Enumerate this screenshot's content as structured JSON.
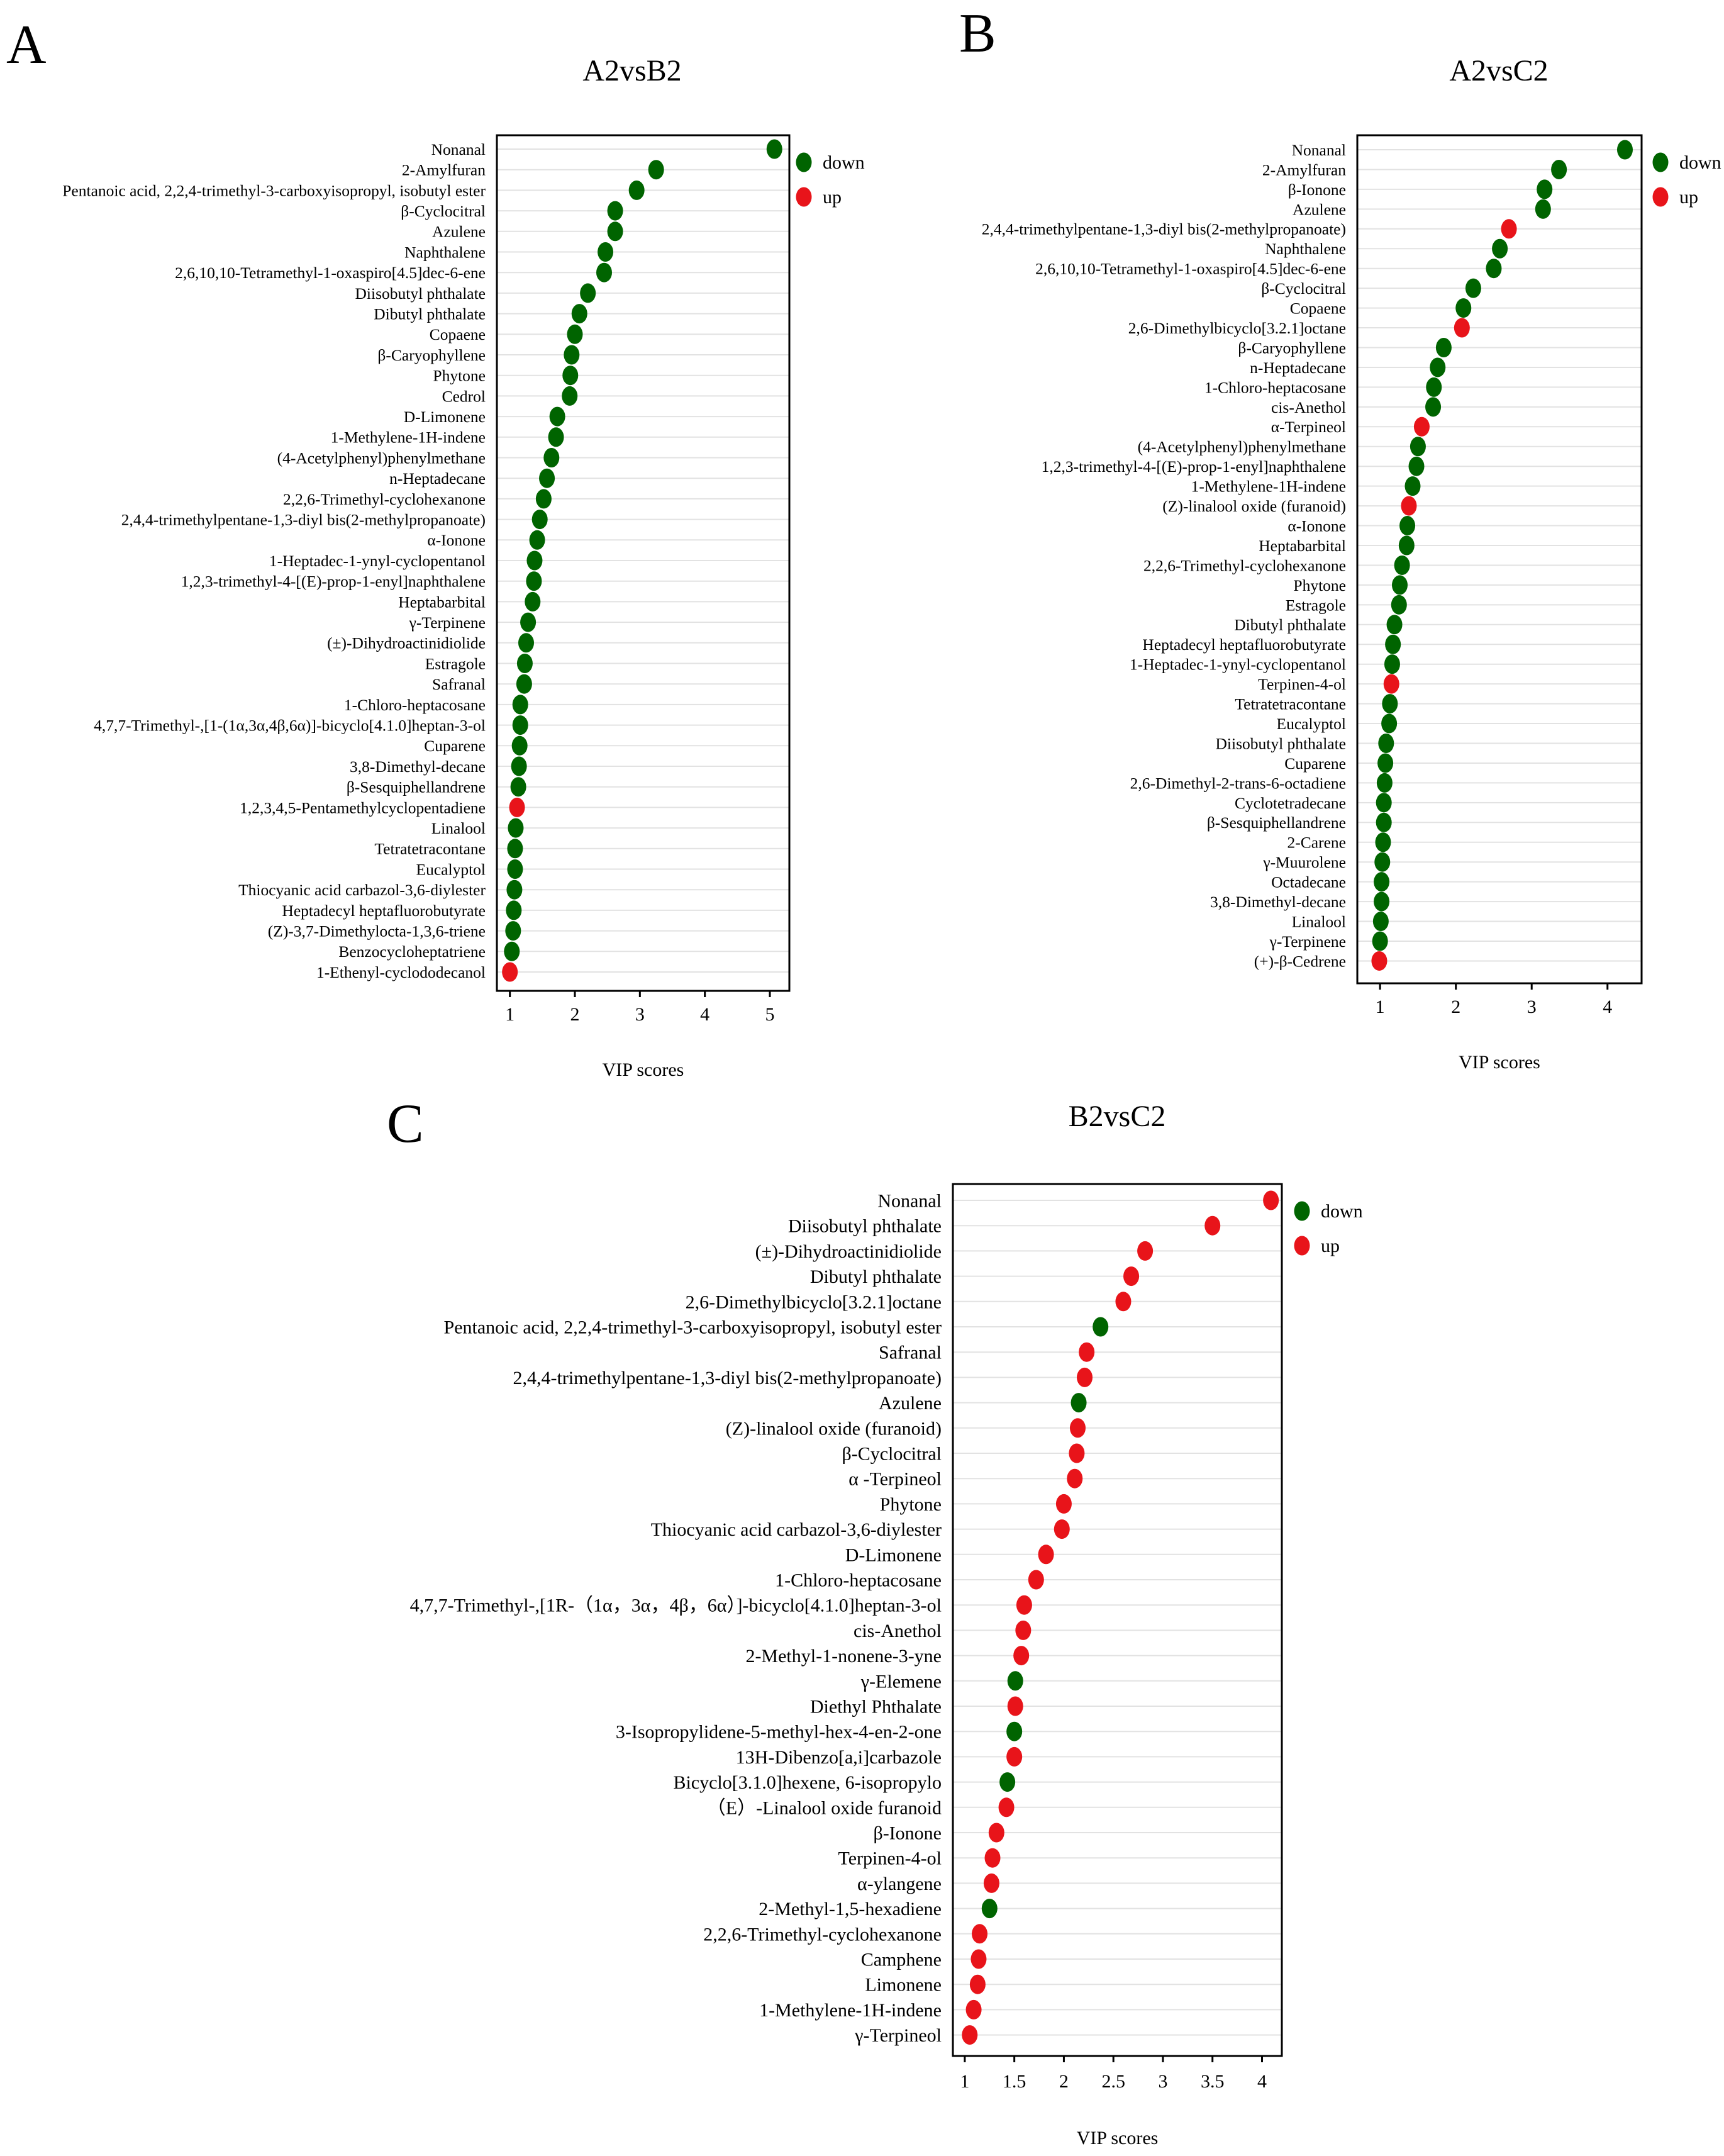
{
  "colors": {
    "down": "#006400",
    "up": "#e8141a"
  },
  "legend": {
    "down": "down",
    "up": "up"
  },
  "chart_data": [
    {
      "panel": "A",
      "type": "scatter",
      "title": "A2vsB2",
      "xlabel": "VIP scores",
      "ylabel": "",
      "xlim": [
        0.8,
        5.3
      ],
      "xticks": [
        1,
        2,
        3,
        4,
        5
      ],
      "categories": [
        "Nonanal",
        "2-Amylfuran",
        "Pentanoic acid, 2,2,4-trimethyl-3-carboxyisopropyl, isobutyl ester",
        "β-Cyclocitral",
        "Azulene",
        "Naphthalene",
        "2,6,10,10-Tetramethyl-1-oxaspiro[4.5]dec-6-ene",
        "Diisobutyl phthalate",
        "Dibutyl phthalate",
        "Copaene",
        "β-Caryophyllene",
        "Phytone",
        "Cedrol",
        "D-Limonene",
        "1-Methylene-1H-indene",
        "(4-Acetylphenyl)phenylmethane",
        "n-Heptadecane",
        "2,2,6-Trimethyl-cyclohexanone",
        "2,4,4-trimethylpentane-1,3-diyl bis(2-methylpropanoate)",
        "α-Ionone",
        "1-Heptadec-1-ynyl-cyclopentanol",
        "1,2,3-trimethyl-4-[(E)-prop-1-enyl]naphthalene",
        "Heptabarbital",
        "γ-Terpinene",
        "(±)-Dihydroactinidiolide",
        "Estragole",
        "Safranal",
        "1-Chloro-heptacosane",
        "4,7,7-Trimethyl-,[1-(1α,3α,4β,6α)]-bicyclo[4.1.0]heptan-3-ol",
        "Cuparene",
        "3,8-Dimethyl-decane",
        "β-Sesquiphellandrene",
        "1,2,3,4,5-Pentamethylcyclopentadiene",
        "Linalool",
        "Tetratetracontane",
        "Eucalyptol",
        "Thiocyanic acid carbazol-3,6-diylester",
        "Heptadecyl heptafluorobutyrate",
        "(Z)-3,7-Dimethylocta-1,3,6-triene",
        "Benzocycloheptatriene",
        "1-Ethenyl-cyclododecanol"
      ],
      "values": [
        5.07,
        3.25,
        2.95,
        2.62,
        2.62,
        2.47,
        2.45,
        2.2,
        2.07,
        2.0,
        1.95,
        1.93,
        1.92,
        1.73,
        1.71,
        1.64,
        1.57,
        1.52,
        1.46,
        1.42,
        1.38,
        1.37,
        1.35,
        1.28,
        1.25,
        1.23,
        1.22,
        1.16,
        1.16,
        1.15,
        1.14,
        1.13,
        1.11,
        1.09,
        1.08,
        1.08,
        1.07,
        1.06,
        1.05,
        1.03,
        1.0
      ],
      "regulation": [
        "down",
        "down",
        "down",
        "down",
        "down",
        "down",
        "down",
        "down",
        "down",
        "down",
        "down",
        "down",
        "down",
        "down",
        "down",
        "down",
        "down",
        "down",
        "down",
        "down",
        "down",
        "down",
        "down",
        "down",
        "down",
        "down",
        "down",
        "down",
        "down",
        "down",
        "down",
        "down",
        "up",
        "down",
        "down",
        "down",
        "down",
        "down",
        "down",
        "down",
        "up"
      ]
    },
    {
      "panel": "B",
      "type": "scatter",
      "title": "A2vsC2",
      "xlabel": "VIP scores",
      "ylabel": "",
      "xlim": [
        0.7,
        4.45
      ],
      "xticks": [
        1,
        2,
        3,
        4
      ],
      "categories": [
        "Nonanal",
        "2-Amylfuran",
        "β-Ionone",
        "Azulene",
        "2,4,4-trimethylpentane-1,3-diyl bis(2-methylpropanoate)",
        "Naphthalene",
        "2,6,10,10-Tetramethyl-1-oxaspiro[4.5]dec-6-ene",
        "β-Cyclocitral",
        "Copaene",
        "2,6-Dimethylbicyclo[3.2.1]octane",
        "β-Caryophyllene",
        "n-Heptadecane",
        "1-Chloro-heptacosane",
        "cis-Anethol",
        "α-Terpineol",
        "(4-Acetylphenyl)phenylmethane",
        "1,2,3-trimethyl-4-[(E)-prop-1-enyl]naphthalene",
        "1-Methylene-1H-indene",
        "(Z)-linalool oxide (furanoid)",
        "α-Ionone",
        "Heptabarbital",
        "2,2,6-Trimethyl-cyclohexanone",
        "Phytone",
        "Estragole",
        "Dibutyl phthalate",
        "Heptadecyl heptafluorobutyrate",
        "1-Heptadec-1-ynyl-cyclopentanol",
        "Terpinen-4-ol",
        "Tetratetracontane",
        "Eucalyptol",
        "Diisobutyl phthalate",
        "Cuparene",
        "2,6-Dimethyl-2-trans-6-octadiene",
        "Cyclotetradecane",
        "β-Sesquiphellandrene",
        "2-Carene",
        "γ-Muurolene",
        "Octadecane",
        "3,8-Dimethyl-decane",
        "Linalool",
        "γ-Terpinene",
        "(+)-β-Cedrene"
      ],
      "values": [
        4.23,
        3.36,
        3.17,
        3.15,
        2.7,
        2.58,
        2.5,
        2.23,
        2.1,
        2.08,
        1.84,
        1.76,
        1.71,
        1.7,
        1.55,
        1.5,
        1.48,
        1.43,
        1.38,
        1.36,
        1.35,
        1.29,
        1.26,
        1.25,
        1.19,
        1.17,
        1.16,
        1.15,
        1.13,
        1.12,
        1.08,
        1.07,
        1.06,
        1.05,
        1.05,
        1.04,
        1.03,
        1.02,
        1.02,
        1.01,
        1.0,
        0.99
      ],
      "regulation": [
        "down",
        "down",
        "down",
        "down",
        "up",
        "down",
        "down",
        "down",
        "down",
        "up",
        "down",
        "down",
        "down",
        "down",
        "up",
        "down",
        "down",
        "down",
        "up",
        "down",
        "down",
        "down",
        "down",
        "down",
        "down",
        "down",
        "down",
        "up",
        "down",
        "down",
        "down",
        "down",
        "down",
        "down",
        "down",
        "down",
        "down",
        "down",
        "down",
        "down",
        "down",
        "up"
      ]
    },
    {
      "panel": "C",
      "type": "scatter",
      "title": "B2vsC2",
      "xlabel": "VIP scores",
      "ylabel": "",
      "xlim": [
        0.88,
        4.2
      ],
      "xticks": [
        1,
        1.5,
        2,
        2.5,
        3,
        3.5,
        4
      ],
      "categories": [
        "Nonanal",
        "Diisobutyl phthalate",
        "(±)-Dihydroactinidiolide",
        "Dibutyl phthalate",
        "2,6-Dimethylbicyclo[3.2.1]octane",
        "Pentanoic acid, 2,2,4-trimethyl-3-carboxyisopropyl, isobutyl ester",
        "Safranal",
        "2,4,4-trimethylpentane-1,3-diyl bis(2-methylpropanoate)",
        "Azulene",
        "(Z)-linalool oxide (furanoid)",
        "β-Cyclocitral",
        "α -Terpineol",
        "Phytone",
        "Thiocyanic acid carbazol-3,6-diylester",
        "D-Limonene",
        "1-Chloro-heptacosane",
        "4,7,7-Trimethyl-,[1R-（1α，3α，4β，6α）]-bicyclo[4.1.0]heptan-3-ol",
        "cis-Anethol",
        "2-Methyl-1-nonene-3-yne",
        "γ-Elemene",
        "Diethyl Phthalate",
        "3-Isopropylidene-5-methyl-hex-4-en-2-one",
        "13H-Dibenzo[a,i]carbazole",
        "Bicyclo[3.1.0]hexene, 6-isopropylo",
        "（E）-Linalool oxide furanoid",
        "β-Ionone",
        "Terpinen-4-ol",
        "α-ylangene",
        "2-Methyl-1,5-hexadiene",
        "2,2,6-Trimethyl-cyclohexanone",
        "Camphene",
        "Limonene",
        "1-Methylene-1H-indene",
        "γ-Terpineol"
      ],
      "values": [
        4.09,
        3.5,
        2.82,
        2.68,
        2.6,
        2.37,
        2.23,
        2.21,
        2.15,
        2.14,
        2.13,
        2.11,
        2.0,
        1.98,
        1.82,
        1.72,
        1.6,
        1.59,
        1.57,
        1.51,
        1.51,
        1.5,
        1.5,
        1.43,
        1.42,
        1.32,
        1.28,
        1.27,
        1.25,
        1.15,
        1.14,
        1.13,
        1.09,
        1.05
      ],
      "regulation": [
        "up",
        "up",
        "up",
        "up",
        "up",
        "down",
        "up",
        "up",
        "down",
        "up",
        "up",
        "up",
        "up",
        "up",
        "up",
        "up",
        "up",
        "up",
        "up",
        "down",
        "up",
        "down",
        "up",
        "down",
        "up",
        "up",
        "up",
        "up",
        "down",
        "up",
        "up",
        "up",
        "up",
        "up"
      ]
    }
  ]
}
